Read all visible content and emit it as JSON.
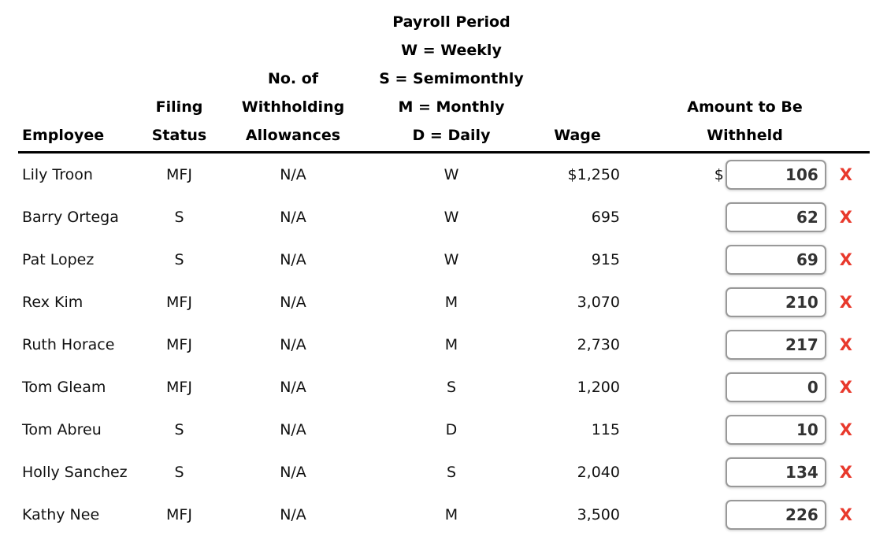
{
  "colors": {
    "text": "#111111",
    "header_text": "#000000",
    "input_border": "#999999",
    "input_text": "#333333",
    "incorrect_red": "#e8392c",
    "divider": "#000000",
    "page_bg": "#ffffff"
  },
  "header": {
    "employee": [
      "Employee"
    ],
    "filing_status": [
      "Filing",
      "Status"
    ],
    "allowances": [
      "No. of",
      "Withholding",
      "Allowances"
    ],
    "payroll_period": [
      "Payroll Period",
      "W = Weekly",
      "S = Semimonthly",
      "M = Monthly",
      "D = Daily"
    ],
    "wage": [
      "Wage"
    ],
    "amount": [
      "Amount to Be",
      "Withheld"
    ]
  },
  "rows": [
    {
      "employee": "Lily Troon",
      "filing_status": "MFJ",
      "allowances": "N/A",
      "payroll_period": "W",
      "wage": "$1,250",
      "currency_prefix": "$",
      "amount_withheld": "106",
      "mark": "X"
    },
    {
      "employee": "Barry Ortega",
      "filing_status": "S",
      "allowances": "N/A",
      "payroll_period": "W",
      "wage": "695",
      "currency_prefix": "",
      "amount_withheld": "62",
      "mark": "X"
    },
    {
      "employee": "Pat Lopez",
      "filing_status": "S",
      "allowances": "N/A",
      "payroll_period": "W",
      "wage": "915",
      "currency_prefix": "",
      "amount_withheld": "69",
      "mark": "X"
    },
    {
      "employee": "Rex Kim",
      "filing_status": "MFJ",
      "allowances": "N/A",
      "payroll_period": "M",
      "wage": "3,070",
      "currency_prefix": "",
      "amount_withheld": "210",
      "mark": "X"
    },
    {
      "employee": "Ruth Horace",
      "filing_status": "MFJ",
      "allowances": "N/A",
      "payroll_period": "M",
      "wage": "2,730",
      "currency_prefix": "",
      "amount_withheld": "217",
      "mark": "X"
    },
    {
      "employee": "Tom Gleam",
      "filing_status": "MFJ",
      "allowances": "N/A",
      "payroll_period": "S",
      "wage": "1,200",
      "currency_prefix": "",
      "amount_withheld": "0",
      "mark": "X"
    },
    {
      "employee": "Tom Abreu",
      "filing_status": "S",
      "allowances": "N/A",
      "payroll_period": "D",
      "wage": "115",
      "currency_prefix": "",
      "amount_withheld": "10",
      "mark": "X"
    },
    {
      "employee": "Holly Sanchez",
      "filing_status": "S",
      "allowances": "N/A",
      "payroll_period": "S",
      "wage": "2,040",
      "currency_prefix": "",
      "amount_withheld": "134",
      "mark": "X"
    },
    {
      "employee": "Kathy Nee",
      "filing_status": "MFJ",
      "allowances": "N/A",
      "payroll_period": "M",
      "wage": "3,500",
      "currency_prefix": "",
      "amount_withheld": "226",
      "mark": "X"
    }
  ]
}
